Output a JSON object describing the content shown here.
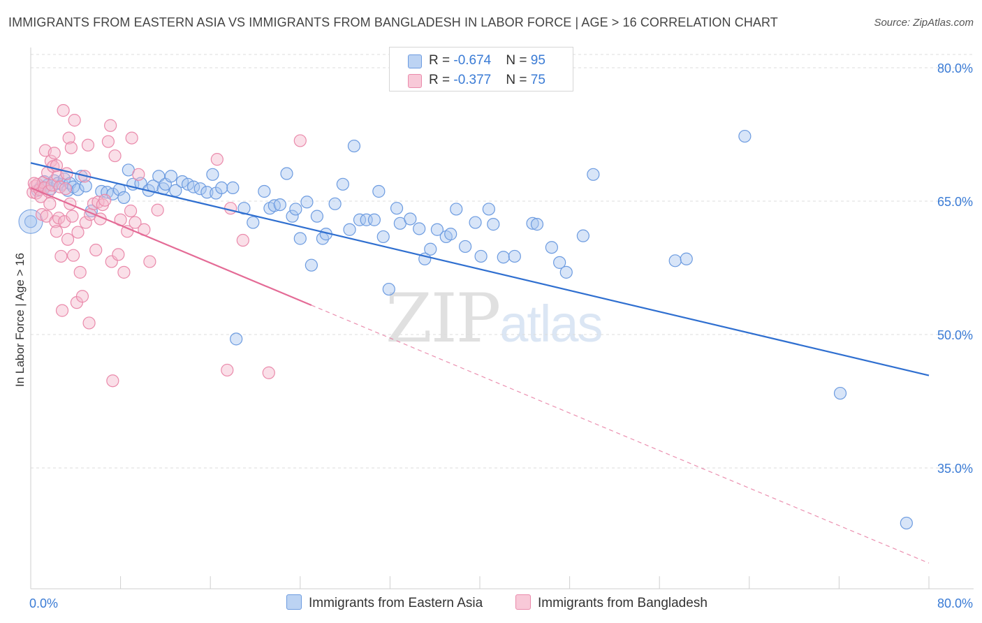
{
  "title": "IMMIGRANTS FROM EASTERN ASIA VS IMMIGRANTS FROM BANGLADESH IN LABOR FORCE | AGE > 16 CORRELATION CHART",
  "source": "Source: ZipAtlas.com",
  "watermark": {
    "zip": "ZIP",
    "atlas": "atlas"
  },
  "colors": {
    "blue_fill": "#a9c6ef",
    "blue_stroke": "#6c9be0",
    "blue_line": "#2f6fd0",
    "pink_fill": "#f4b8cb",
    "pink_stroke": "#ea8aab",
    "pink_line": "#e46b96",
    "grid": "#dcdcdc",
    "tick_label": "#3a7bd5"
  },
  "legend": [
    {
      "r_label": "R = ",
      "r_value": "-0.674",
      "n_label": "N = ",
      "n_value": "95"
    },
    {
      "r_label": "R = ",
      "r_value": "-0.377",
      "n_label": "N = ",
      "n_value": "75"
    }
  ],
  "chart_data": {
    "type": "scatter",
    "title": "IMMIGRANTS FROM EASTERN ASIA VS IMMIGRANTS FROM BANGLADESH IN LABOR FORCE | AGE > 16 CORRELATION CHART",
    "xlabel": "",
    "ylabel": "In Labor Force | Age > 16",
    "xlim": [
      0,
      80
    ],
    "ylim": [
      20,
      82
    ],
    "x_tick_labels": [
      "0.0%",
      "80.0%"
    ],
    "y_ticks": [
      35,
      50,
      65,
      80
    ],
    "y_tick_labels": [
      "35.0%",
      "50.0%",
      "65.0%",
      "80.0%"
    ],
    "grid": true,
    "legend_position": "top-center",
    "series": [
      {
        "name": "Immigrants from Eastern Asia",
        "r": -0.674,
        "n": 95,
        "trend": {
          "x": [
            0,
            80
          ],
          "y": [
            69.3,
            45.4
          ]
        },
        "points": [
          [
            0,
            62.7
          ],
          [
            0.6,
            66.2
          ],
          [
            0.9,
            66.6
          ],
          [
            1.2,
            67.2
          ],
          [
            1.5,
            66.8
          ],
          [
            1.8,
            66.4
          ],
          [
            2.1,
            67.3
          ],
          [
            2.4,
            67.0
          ],
          [
            2.8,
            66.9
          ],
          [
            3.0,
            67.5
          ],
          [
            3.3,
            66.2
          ],
          [
            3.5,
            67.0
          ],
          [
            3.8,
            66.6
          ],
          [
            4.2,
            66.3
          ],
          [
            4.5,
            67.8
          ],
          [
            4.9,
            66.7
          ],
          [
            5.4,
            63.9
          ],
          [
            6.3,
            66.1
          ],
          [
            6.8,
            66.0
          ],
          [
            7.3,
            65.8
          ],
          [
            7.9,
            66.3
          ],
          [
            8.3,
            65.4
          ],
          [
            8.7,
            68.5
          ],
          [
            9.1,
            66.9
          ],
          [
            9.8,
            67.0
          ],
          [
            10.5,
            66.2
          ],
          [
            10.9,
            66.7
          ],
          [
            11.4,
            67.8
          ],
          [
            11.8,
            66.4
          ],
          [
            12.0,
            66.9
          ],
          [
            12.5,
            67.8
          ],
          [
            12.9,
            66.2
          ],
          [
            13.5,
            67.2
          ],
          [
            14.0,
            66.9
          ],
          [
            14.5,
            66.6
          ],
          [
            15.1,
            66.4
          ],
          [
            15.7,
            66.0
          ],
          [
            16.2,
            68.0
          ],
          [
            16.5,
            65.9
          ],
          [
            17.0,
            66.5
          ],
          [
            18.0,
            66.5
          ],
          [
            19.0,
            64.2
          ],
          [
            19.8,
            62.6
          ],
          [
            20.8,
            66.1
          ],
          [
            21.3,
            64.2
          ],
          [
            21.7,
            64.5
          ],
          [
            22.2,
            64.6
          ],
          [
            22.8,
            68.1
          ],
          [
            23.3,
            63.3
          ],
          [
            23.6,
            64.1
          ],
          [
            24.0,
            60.8
          ],
          [
            24.6,
            64.9
          ],
          [
            25.0,
            57.8
          ],
          [
            25.5,
            63.3
          ],
          [
            26.0,
            60.8
          ],
          [
            26.3,
            61.3
          ],
          [
            27.1,
            64.7
          ],
          [
            27.8,
            66.9
          ],
          [
            28.4,
            61.8
          ],
          [
            28.8,
            71.2
          ],
          [
            29.3,
            62.9
          ],
          [
            29.9,
            62.9
          ],
          [
            30.6,
            62.9
          ],
          [
            31.0,
            66.1
          ],
          [
            31.4,
            61.0
          ],
          [
            31.9,
            55.1
          ],
          [
            32.6,
            64.2
          ],
          [
            32.9,
            62.5
          ],
          [
            33.8,
            63.0
          ],
          [
            34.6,
            61.9
          ],
          [
            35.1,
            58.5
          ],
          [
            35.6,
            59.6
          ],
          [
            36.2,
            61.8
          ],
          [
            37.0,
            61.0
          ],
          [
            37.4,
            61.3
          ],
          [
            37.9,
            64.1
          ],
          [
            38.7,
            59.9
          ],
          [
            39.6,
            62.6
          ],
          [
            40.1,
            58.8
          ],
          [
            40.8,
            64.1
          ],
          [
            41.2,
            62.4
          ],
          [
            42.1,
            58.7
          ],
          [
            43.1,
            58.8
          ],
          [
            44.7,
            62.5
          ],
          [
            45.1,
            62.4
          ],
          [
            46.4,
            59.8
          ],
          [
            47.1,
            58.1
          ],
          [
            47.7,
            57.0
          ],
          [
            49.2,
            61.1
          ],
          [
            50.1,
            68.0
          ],
          [
            57.4,
            58.3
          ],
          [
            58.4,
            58.5
          ],
          [
            63.6,
            72.3
          ],
          [
            72.1,
            43.4
          ],
          [
            78.0,
            28.8
          ],
          [
            18.3,
            49.5
          ]
        ]
      },
      {
        "name": "Immigrants from Bangladesh",
        "r": -0.377,
        "n": 75,
        "trend": {
          "x": [
            0,
            25
          ],
          "y": [
            66.5,
            53.3
          ]
        },
        "trend_dashed": {
          "x": [
            25,
            80
          ],
          "y": [
            53.3,
            24.3
          ]
        },
        "points": [
          [
            0.2,
            66.0
          ],
          [
            0.4,
            66.7
          ],
          [
            0.5,
            65.9
          ],
          [
            0.6,
            66.9
          ],
          [
            0.8,
            66.3
          ],
          [
            0.9,
            65.5
          ],
          [
            1.0,
            63.5
          ],
          [
            1.1,
            67.1
          ],
          [
            1.2,
            66.5
          ],
          [
            1.3,
            70.7
          ],
          [
            1.4,
            63.3
          ],
          [
            1.5,
            68.2
          ],
          [
            1.6,
            66.1
          ],
          [
            1.7,
            64.7
          ],
          [
            1.8,
            69.5
          ],
          [
            1.9,
            66.8
          ],
          [
            2.0,
            68.9
          ],
          [
            2.1,
            70.4
          ],
          [
            2.2,
            62.7
          ],
          [
            2.3,
            61.6
          ],
          [
            2.4,
            67.8
          ],
          [
            2.5,
            63.1
          ],
          [
            2.6,
            66.6
          ],
          [
            2.7,
            58.8
          ],
          [
            2.8,
            52.7
          ],
          [
            2.9,
            75.2
          ],
          [
            3.0,
            62.7
          ],
          [
            3.1,
            66.4
          ],
          [
            3.2,
            68.1
          ],
          [
            3.3,
            60.7
          ],
          [
            3.4,
            72.1
          ],
          [
            3.5,
            64.7
          ],
          [
            3.6,
            71.0
          ],
          [
            3.7,
            63.3
          ],
          [
            3.8,
            58.9
          ],
          [
            3.9,
            74.1
          ],
          [
            4.1,
            53.6
          ],
          [
            4.2,
            61.5
          ],
          [
            4.4,
            57.0
          ],
          [
            4.6,
            54.3
          ],
          [
            4.8,
            67.8
          ],
          [
            4.9,
            62.6
          ],
          [
            5.1,
            71.3
          ],
          [
            5.2,
            51.3
          ],
          [
            5.3,
            63.5
          ],
          [
            5.6,
            64.7
          ],
          [
            5.8,
            59.5
          ],
          [
            6.0,
            64.9
          ],
          [
            6.2,
            63.0
          ],
          [
            6.4,
            64.6
          ],
          [
            6.6,
            65.1
          ],
          [
            6.9,
            71.7
          ],
          [
            7.1,
            73.5
          ],
          [
            7.2,
            58.2
          ],
          [
            7.5,
            70.1
          ],
          [
            7.8,
            59.0
          ],
          [
            8.0,
            62.9
          ],
          [
            8.3,
            57.0
          ],
          [
            8.6,
            61.6
          ],
          [
            8.9,
            63.9
          ],
          [
            9.0,
            72.1
          ],
          [
            9.3,
            62.6
          ],
          [
            9.6,
            68.0
          ],
          [
            10.1,
            61.8
          ],
          [
            10.6,
            58.2
          ],
          [
            11.3,
            64.0
          ],
          [
            16.6,
            69.7
          ],
          [
            17.8,
            64.2
          ],
          [
            18.9,
            60.6
          ],
          [
            17.5,
            46.0
          ],
          [
            7.3,
            44.8
          ],
          [
            21.2,
            45.7
          ],
          [
            24.0,
            71.8
          ],
          [
            2.3,
            69.0
          ],
          [
            0.3,
            67.0
          ]
        ]
      }
    ]
  }
}
